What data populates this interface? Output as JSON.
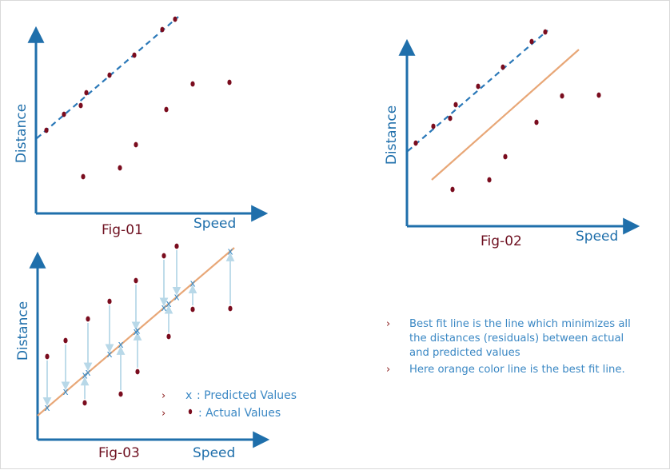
{
  "fig1": {
    "caption": "Fig-01",
    "xlabel": "Speed",
    "ylabel": "Distance"
  },
  "fig2": {
    "caption": "Fig-02",
    "xlabel": "Speed",
    "ylabel": "Distance"
  },
  "fig3": {
    "caption": "Fig-03",
    "xlabel": "Speed",
    "ylabel": "Distance"
  },
  "legend": {
    "predicted_marker": "x",
    "predicted_label": ": Predicted Values",
    "actual_label": ": Actual Values"
  },
  "notes": {
    "bullet": "›",
    "line1": [
      "Best fit line  is the line  which minimizes all",
      "the distances (residuals) between actual",
      "and predicted values"
    ],
    "line2": "Here orange color line is the best fit line."
  },
  "colors": {
    "axis": "#1f6fab",
    "dot": "#7a0c1e",
    "dashed_line": "#2a78b8",
    "best_fit": "#e8a777",
    "residual_arrow": "#b8d8e8",
    "predicted": "#3c8dc8"
  }
}
